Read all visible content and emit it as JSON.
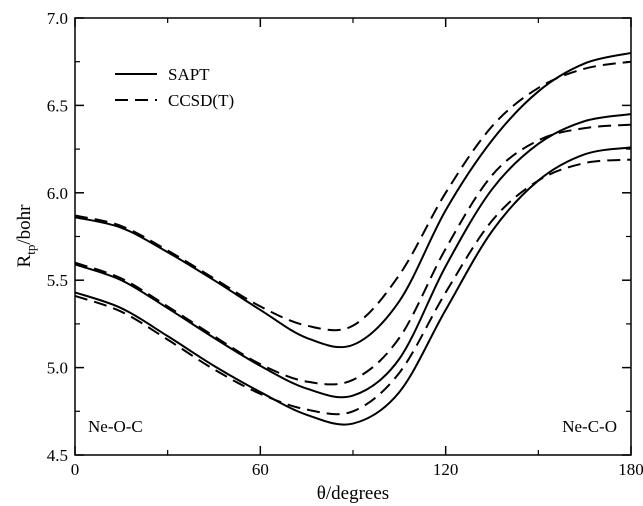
{
  "chart_data": {
    "type": "line",
    "xlabel": "θ/degrees",
    "ylabel_main": "R",
    "ylabel_sub": "tp",
    "ylabel_rest": "/bohr",
    "xlim": [
      0,
      180
    ],
    "ylim": [
      4.5,
      7.0
    ],
    "xticks": [
      0,
      60,
      120,
      180
    ],
    "xtick_labels": [
      "0",
      "60",
      "120",
      "180"
    ],
    "yticks": [
      4.5,
      5.0,
      5.5,
      6.0,
      6.5,
      7.0
    ],
    "ytick_labels": [
      "4.5",
      "5.0",
      "5.5",
      "6.0",
      "6.5",
      "7.0"
    ],
    "grid": false,
    "legend": {
      "placement": "top-left",
      "entries": [
        {
          "name": "SAPT",
          "style": "solid"
        },
        {
          "name": "CCSD(T)",
          "style": "dashed"
        }
      ]
    },
    "annotations": [
      {
        "text": "Ne-O-C",
        "position": "bottom-left"
      },
      {
        "text": "Ne-C-O",
        "position": "bottom-right"
      }
    ],
    "series": [
      {
        "method": "SAPT",
        "style": "solid",
        "x": [
          0,
          15,
          30,
          45,
          60,
          75,
          90,
          105,
          120,
          135,
          150,
          165,
          180
        ],
        "y": [
          5.86,
          5.8,
          5.66,
          5.5,
          5.33,
          5.17,
          5.13,
          5.38,
          5.9,
          6.3,
          6.58,
          6.74,
          6.8
        ]
      },
      {
        "method": "CCSD(T)",
        "style": "dashed",
        "x": [
          0,
          15,
          30,
          45,
          60,
          75,
          90,
          105,
          120,
          135,
          150,
          165,
          180
        ],
        "y": [
          5.87,
          5.81,
          5.67,
          5.51,
          5.35,
          5.24,
          5.24,
          5.53,
          6.0,
          6.38,
          6.6,
          6.71,
          6.75
        ]
      },
      {
        "method": "SAPT",
        "style": "solid",
        "x": [
          0,
          15,
          30,
          45,
          60,
          75,
          90,
          105,
          120,
          135,
          150,
          165,
          180
        ],
        "y": [
          5.59,
          5.5,
          5.34,
          5.17,
          5.01,
          4.88,
          4.84,
          5.05,
          5.58,
          6.02,
          6.28,
          6.41,
          6.45
        ]
      },
      {
        "method": "CCSD(T)",
        "style": "dashed",
        "x": [
          0,
          15,
          30,
          45,
          60,
          75,
          90,
          105,
          120,
          135,
          150,
          165,
          180
        ],
        "y": [
          5.6,
          5.51,
          5.35,
          5.18,
          5.02,
          4.92,
          4.93,
          5.17,
          5.68,
          6.1,
          6.3,
          6.37,
          6.39
        ]
      },
      {
        "method": "SAPT",
        "style": "solid",
        "x": [
          0,
          15,
          30,
          45,
          60,
          75,
          90,
          105,
          120,
          135,
          150,
          165,
          180
        ],
        "y": [
          5.43,
          5.34,
          5.18,
          5.01,
          4.86,
          4.73,
          4.68,
          4.86,
          5.33,
          5.78,
          6.07,
          6.22,
          6.26
        ]
      },
      {
        "method": "CCSD(T)",
        "style": "dashed",
        "x": [
          0,
          15,
          30,
          45,
          60,
          75,
          90,
          105,
          120,
          135,
          150,
          165,
          180
        ],
        "y": [
          5.41,
          5.32,
          5.16,
          4.99,
          4.85,
          4.76,
          4.75,
          4.97,
          5.43,
          5.84,
          6.07,
          6.17,
          6.19
        ]
      }
    ]
  }
}
